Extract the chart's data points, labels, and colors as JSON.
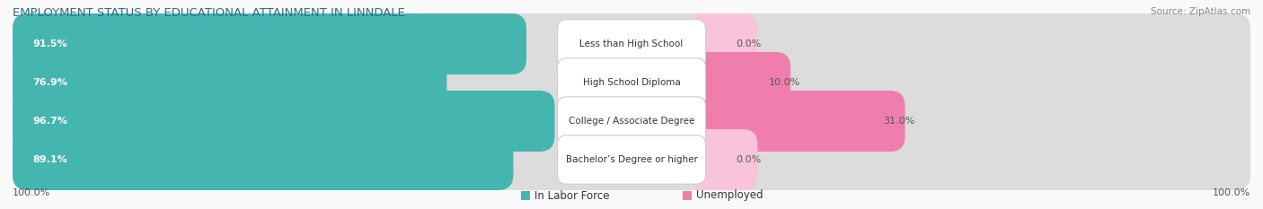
{
  "title": "EMPLOYMENT STATUS BY EDUCATIONAL ATTAINMENT IN LINNDALE",
  "source": "Source: ZipAtlas.com",
  "categories": [
    "Less than High School",
    "High School Diploma",
    "College / Associate Degree",
    "Bachelor’s Degree or higher"
  ],
  "labor_force_pct": [
    91.5,
    76.9,
    96.7,
    89.1
  ],
  "unemployed_pct": [
    0.0,
    10.0,
    31.0,
    0.0
  ],
  "color_labor": "#45b5b0",
  "color_labor_light": "#a8dbd9",
  "color_unemployed": "#f07ead",
  "color_unemployed_light": "#f9c4da",
  "color_bar_bg": "#e8e8e8",
  "background_color": "#f9f9f9",
  "left_axis_label": "100.0%",
  "right_axis_label": "100.0%",
  "legend_labor": "In Labor Force",
  "legend_unemployed": "Unemployed",
  "title_fontsize": 9.5,
  "source_fontsize": 7.5,
  "bar_label_fontsize": 8.0,
  "cat_label_fontsize": 7.5,
  "tick_fontsize": 8.0,
  "legend_fontsize": 8.5
}
